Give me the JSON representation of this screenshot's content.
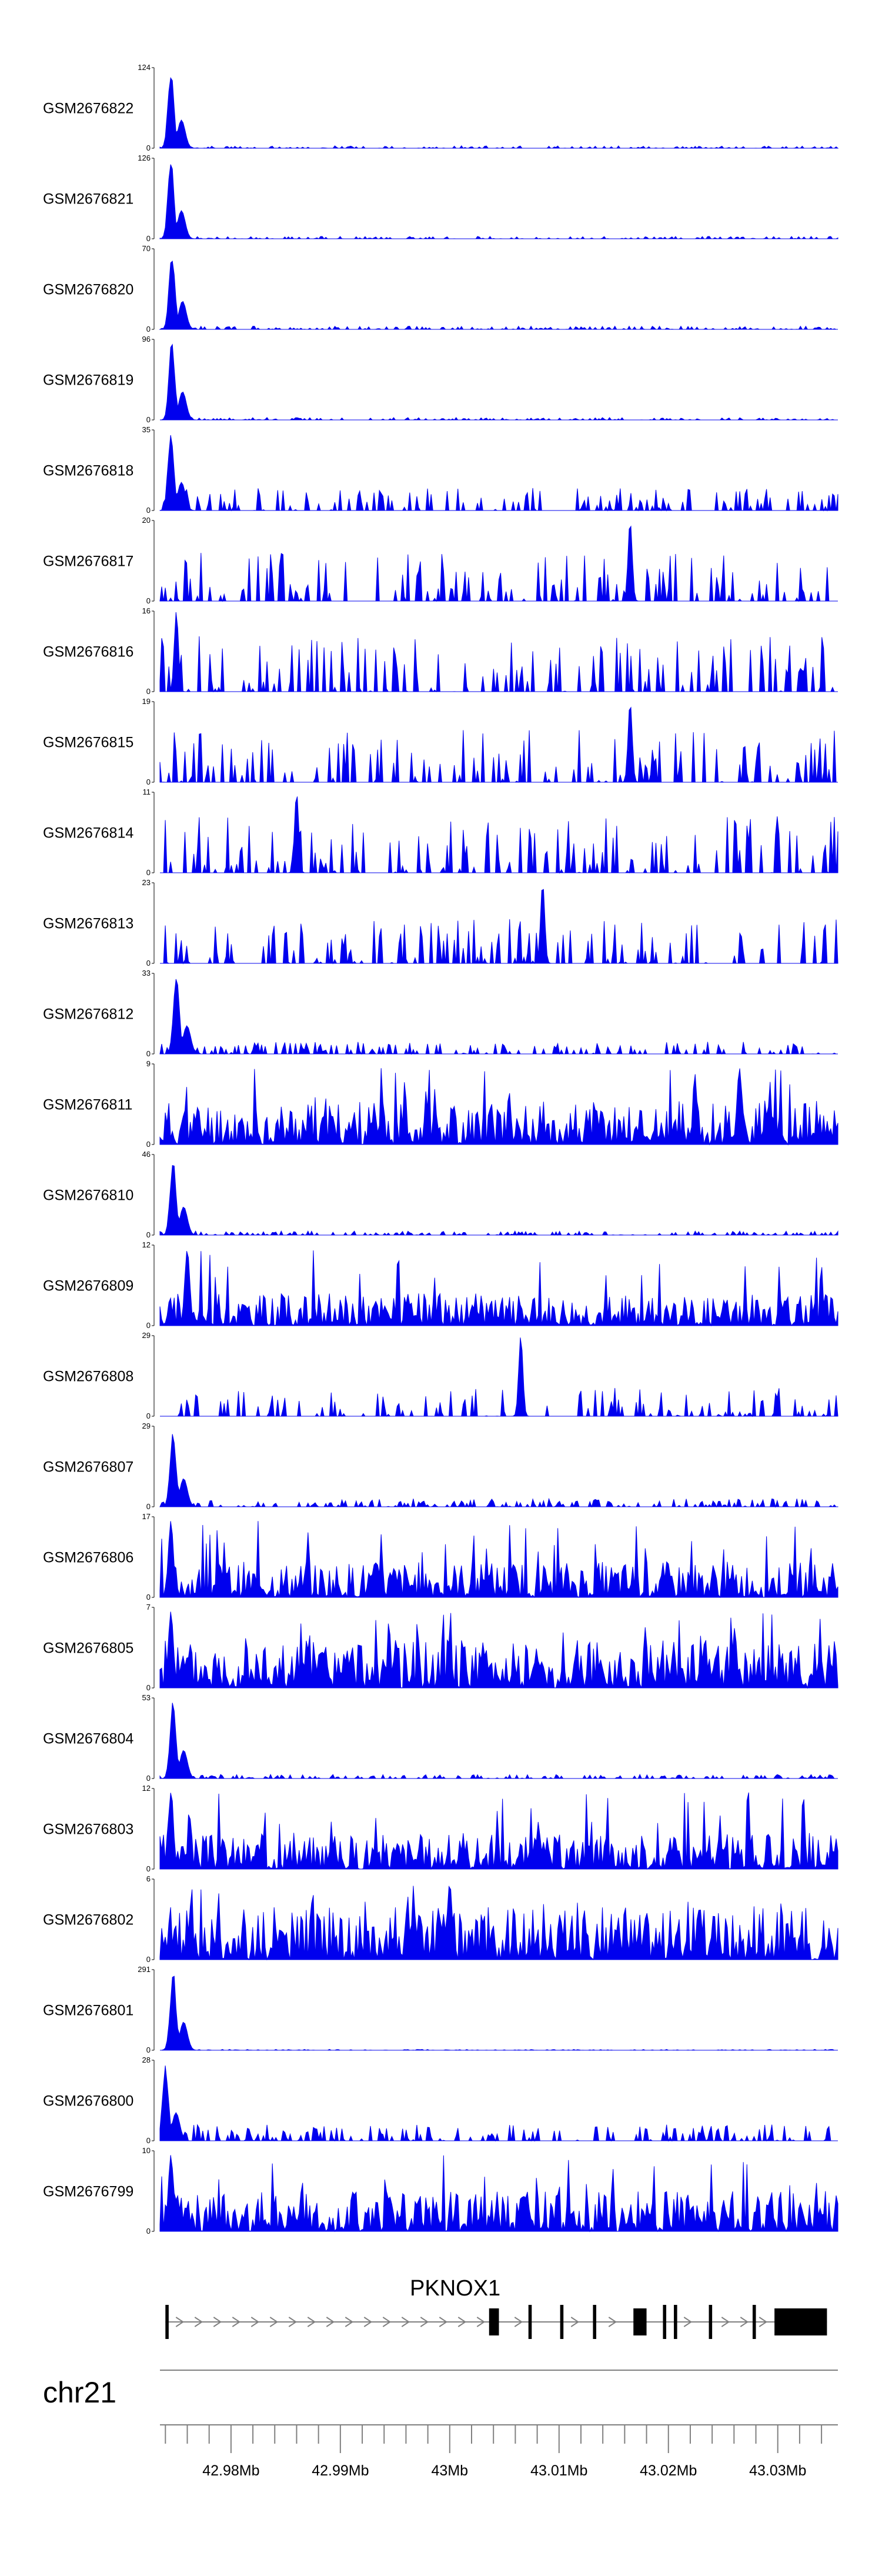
{
  "chart_data": {
    "type": "area",
    "title": "",
    "chromosome": "chr21",
    "xlim_mb": [
      42.9735,
      43.0355
    ],
    "x_tick_labels": [
      "42.98Mb",
      "42.99Mb",
      "43Mb",
      "43.01Mb",
      "43.02Mb",
      "43.03Mb"
    ],
    "x_tick_values_mb": [
      42.98,
      42.99,
      43.0,
      43.01,
      43.02,
      43.03
    ],
    "minor_tick_step_mb": 0.002,
    "fill_color": "#0000ee",
    "baseline_label": "0",
    "tracks": [
      {
        "name": "GSM2676822",
        "ymax": 124,
        "ymax_label": "124",
        "profile": "peak",
        "peak_at_mb": 42.9745,
        "noise": 0.03,
        "seed": 22
      },
      {
        "name": "GSM2676821",
        "ymax": 126,
        "ymax_label": "126",
        "profile": "peak",
        "peak_at_mb": 42.9745,
        "noise": 0.03,
        "seed": 21
      },
      {
        "name": "GSM2676820",
        "ymax": 70,
        "ymax_label": "70",
        "profile": "peak",
        "peak_at_mb": 42.9746,
        "noise": 0.04,
        "seed": 20
      },
      {
        "name": "GSM2676819",
        "ymax": 96,
        "ymax_label": "96",
        "profile": "peak",
        "peak_at_mb": 42.9746,
        "noise": 0.03,
        "seed": 19
      },
      {
        "name": "GSM2676818",
        "ymax": 35,
        "ymax_label": "35",
        "profile": "peak",
        "peak_at_mb": 42.9745,
        "noise": 0.28,
        "seed": 18
      },
      {
        "name": "GSM2676817",
        "ymax": 20,
        "ymax_label": "20",
        "profile": "sparse",
        "peak_at_mb": 43.0165,
        "noise": 0.6,
        "seed": 17
      },
      {
        "name": "GSM2676816",
        "ymax": 16,
        "ymax_label": "16",
        "profile": "sparse",
        "peak_at_mb": 42.975,
        "noise": 0.7,
        "seed": 16
      },
      {
        "name": "GSM2676815",
        "ymax": 19,
        "ymax_label": "19",
        "profile": "sparse",
        "peak_at_mb": 43.0165,
        "noise": 0.65,
        "seed": 15
      },
      {
        "name": "GSM2676814",
        "ymax": 11,
        "ymax_label": "11",
        "profile": "sparse",
        "peak_at_mb": 42.986,
        "noise": 0.7,
        "seed": 14
      },
      {
        "name": "GSM2676813",
        "ymax": 23,
        "ymax_label": "23",
        "profile": "sparse",
        "peak_at_mb": 43.0085,
        "noise": 0.55,
        "seed": 13
      },
      {
        "name": "GSM2676812",
        "ymax": 33,
        "ymax_label": "33",
        "profile": "peak",
        "peak_at_mb": 42.975,
        "noise": 0.15,
        "seed": 12
      },
      {
        "name": "GSM2676811",
        "ymax": 9,
        "ymax_label": "9",
        "profile": "dense",
        "peak_at_mb": 43.0265,
        "noise": 0.55,
        "seed": 11
      },
      {
        "name": "GSM2676810",
        "ymax": 46,
        "ymax_label": "46",
        "profile": "peak",
        "peak_at_mb": 42.9747,
        "noise": 0.05,
        "seed": 10
      },
      {
        "name": "GSM2676809",
        "ymax": 12,
        "ymax_label": "12",
        "profile": "dense",
        "peak_at_mb": 42.976,
        "noise": 0.4,
        "seed": 9
      },
      {
        "name": "GSM2676808",
        "ymax": 29,
        "ymax_label": "29",
        "profile": "sparse",
        "peak_at_mb": 43.0065,
        "noise": 0.35,
        "seed": 8
      },
      {
        "name": "GSM2676807",
        "ymax": 29,
        "ymax_label": "29",
        "profile": "peak",
        "peak_at_mb": 42.9747,
        "noise": 0.1,
        "seed": 7
      },
      {
        "name": "GSM2676806",
        "ymax": 17,
        "ymax_label": "17",
        "profile": "dense",
        "peak_at_mb": 42.9745,
        "noise": 0.45,
        "seed": 6
      },
      {
        "name": "GSM2676805",
        "ymax": 7,
        "ymax_label": "7",
        "profile": "dense",
        "peak_at_mb": 42.9745,
        "noise": 0.6,
        "seed": 5
      },
      {
        "name": "GSM2676804",
        "ymax": 53,
        "ymax_label": "53",
        "profile": "peak",
        "peak_at_mb": 42.9747,
        "noise": 0.05,
        "seed": 4
      },
      {
        "name": "GSM2676803",
        "ymax": 12,
        "ymax_label": "12",
        "profile": "dense",
        "peak_at_mb": 42.9745,
        "noise": 0.45,
        "seed": 3
      },
      {
        "name": "GSM2676802",
        "ymax": 6,
        "ymax_label": "6",
        "profile": "dense",
        "peak_at_mb": 43.0,
        "noise": 0.65,
        "seed": 2
      },
      {
        "name": "GSM2676801",
        "ymax": 291,
        "ymax_label": "291",
        "profile": "peak",
        "peak_at_mb": 42.9747,
        "noise": 0.01,
        "seed": 1
      },
      {
        "name": "GSM2676800",
        "ymax": 28,
        "ymax_label": "28",
        "profile": "peak",
        "peak_at_mb": 42.974,
        "noise": 0.2,
        "seed": 100
      },
      {
        "name": "GSM2676799",
        "ymax": 10,
        "ymax_label": "10",
        "profile": "dense",
        "peak_at_mb": 42.9745,
        "noise": 0.5,
        "seed": 99
      }
    ],
    "gene": {
      "name": "PKNOX1",
      "strand": "+",
      "start_mb": 42.974,
      "end_mb": 43.0345,
      "exons_mb": [
        [
          42.974,
          42.9743
        ],
        [
          43.0036,
          43.0045
        ],
        [
          43.0072,
          43.0075
        ],
        [
          43.0101,
          43.0104
        ],
        [
          43.0131,
          43.0134
        ],
        [
          43.0168,
          43.018
        ],
        [
          43.0195,
          43.0198
        ],
        [
          43.0205,
          43.0208
        ],
        [
          43.0237,
          43.024
        ],
        [
          43.0277,
          43.028
        ],
        [
          43.0297,
          43.0345
        ]
      ]
    }
  }
}
